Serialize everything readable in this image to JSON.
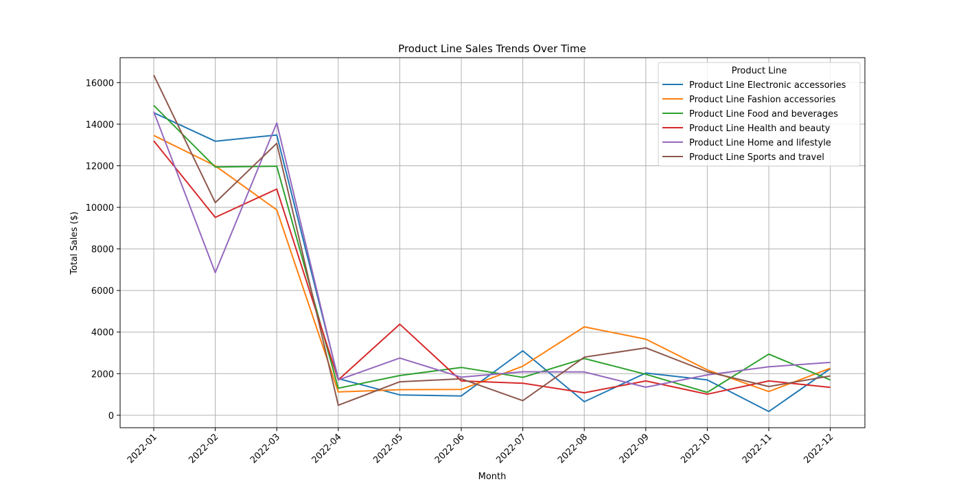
{
  "chart_data": {
    "type": "line",
    "title": "Product Line Sales Trends Over Time",
    "xlabel": "Month",
    "ylabel": "Total Sales ($)",
    "categories": [
      "2022-01",
      "2022-02",
      "2022-03",
      "2022-04",
      "2022-05",
      "2022-06",
      "2022-07",
      "2022-08",
      "2022-09",
      "2022-10",
      "2022-11",
      "2022-12"
    ],
    "ylim": [
      -600,
      17200
    ],
    "yticks": [
      0,
      2000,
      4000,
      6000,
      8000,
      10000,
      12000,
      14000,
      16000
    ],
    "grid": true,
    "legend": {
      "title": "Product Line",
      "placement": "upper right"
    },
    "series": [
      {
        "name": "Product Line Electronic accessories",
        "color": "#1f77b4",
        "values": [
          14550,
          13180,
          13480,
          1760,
          980,
          930,
          3100,
          650,
          2030,
          1700,
          180,
          2240
        ]
      },
      {
        "name": "Product Line Fashion accessories",
        "color": "#ff7f0e",
        "values": [
          13460,
          12000,
          9880,
          1120,
          1230,
          1240,
          2360,
          4250,
          3660,
          2180,
          1140,
          2260
        ]
      },
      {
        "name": "Product Line Food and beverages",
        "color": "#2ca02c",
        "values": [
          14900,
          11940,
          11980,
          1300,
          1910,
          2300,
          1820,
          2730,
          1970,
          1100,
          2940,
          1700
        ]
      },
      {
        "name": "Product Line Health and beauty",
        "color": "#d62728",
        "values": [
          13200,
          9520,
          10880,
          1700,
          4380,
          1650,
          1540,
          1080,
          1650,
          1010,
          1650,
          1340
        ]
      },
      {
        "name": "Product Line Home and lifestyle",
        "color": "#9467bd",
        "values": [
          14600,
          6860,
          14060,
          1700,
          2750,
          1830,
          2090,
          2080,
          1350,
          1940,
          2330,
          2540
        ]
      },
      {
        "name": "Product Line Sports and travel",
        "color": "#8c564b",
        "values": [
          16360,
          10230,
          13080,
          480,
          1610,
          1750,
          700,
          2790,
          3240,
          2090,
          1380,
          1890
        ]
      }
    ]
  }
}
